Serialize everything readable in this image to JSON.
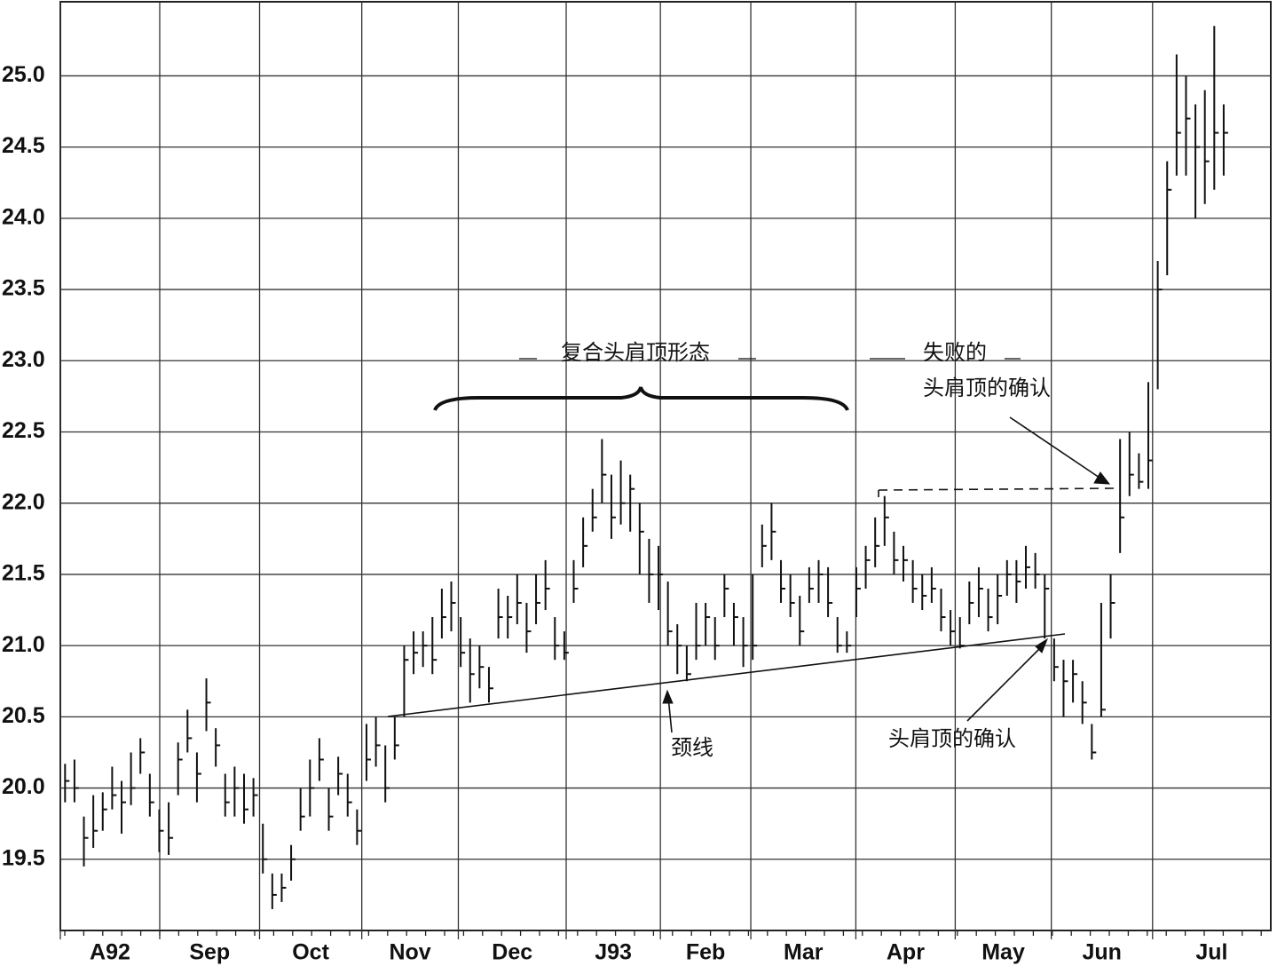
{
  "chart_data": {
    "type": "ohlc",
    "x": [
      1,
      3,
      5,
      7,
      9,
      11,
      13,
      15,
      17,
      19,
      21,
      23,
      25,
      27,
      29,
      31,
      33,
      35,
      37,
      39,
      41,
      43,
      45,
      47,
      49,
      51,
      53,
      55,
      57,
      59,
      61,
      63,
      65,
      67,
      69,
      71,
      73,
      75,
      77,
      79,
      81,
      83,
      85,
      87,
      89,
      91,
      93,
      95,
      97,
      99,
      101,
      103,
      105,
      107,
      109,
      111,
      113,
      115,
      117,
      119,
      121,
      123,
      125,
      127,
      129,
      131,
      133,
      135,
      137,
      139,
      141,
      143,
      145,
      147,
      149,
      151,
      153,
      155,
      157,
      159,
      161,
      163,
      165,
      167,
      169,
      171,
      173,
      175,
      177,
      179,
      181,
      183,
      185,
      187,
      189,
      191,
      193,
      195,
      197,
      199,
      201,
      203,
      205,
      207,
      209,
      211,
      213,
      215,
      217,
      219,
      221,
      223,
      225,
      227,
      229,
      231,
      233,
      235,
      237,
      239,
      241,
      243,
      245,
      247
    ],
    "high": [
      20.17,
      20.2,
      19.8,
      19.95,
      19.97,
      20.15,
      20.05,
      20.25,
      20.35,
      20.1,
      19.85,
      19.9,
      20.32,
      20.55,
      20.25,
      20.77,
      20.42,
      20.1,
      20.15,
      20.1,
      20.07,
      19.75,
      19.4,
      19.4,
      19.6,
      20.0,
      20.2,
      20.35,
      20.0,
      20.22,
      20.1,
      19.85,
      20.45,
      20.5,
      20.3,
      20.5,
      21.0,
      21.1,
      21.1,
      21.2,
      21.4,
      21.45,
      21.2,
      21.05,
      21.0,
      20.85,
      21.4,
      21.35,
      21.5,
      21.3,
      21.5,
      21.6,
      21.2,
      21.1,
      21.6,
      21.9,
      22.1,
      22.45,
      22.2,
      22.3,
      22.2,
      22.0,
      21.75,
      21.7,
      21.45,
      21.15,
      21.0,
      21.3,
      21.3,
      21.2,
      21.5,
      21.3,
      21.2,
      21.5,
      21.85,
      22.0,
      21.6,
      21.5,
      21.35,
      21.55,
      21.6,
      21.55,
      21.2,
      21.1,
      21.55,
      21.7,
      21.9,
      22.05,
      21.8,
      21.7,
      21.6,
      21.5,
      21.55,
      21.4,
      21.25,
      21.2,
      21.45,
      21.55,
      21.4,
      21.5,
      21.6,
      21.6,
      21.7,
      21.65,
      21.5,
      21.05,
      20.9,
      20.9,
      20.75,
      20.45,
      21.3,
      21.5,
      22.45,
      22.5,
      22.35,
      22.85,
      23.7,
      24.4,
      25.15,
      25.0,
      24.8,
      24.9,
      25.35,
      24.8
    ],
    "low": [
      19.9,
      19.9,
      19.45,
      19.58,
      19.7,
      19.85,
      19.68,
      19.88,
      20.1,
      19.8,
      19.55,
      19.53,
      19.95,
      20.25,
      19.9,
      20.4,
      20.15,
      19.8,
      19.8,
      19.75,
      19.8,
      19.4,
      19.15,
      19.2,
      19.35,
      19.7,
      19.8,
      20.05,
      19.7,
      19.95,
      19.8,
      19.6,
      20.05,
      20.15,
      19.9,
      20.2,
      20.5,
      20.8,
      20.85,
      20.8,
      21.05,
      21.1,
      20.85,
      20.6,
      20.7,
      20.6,
      21.05,
      21.05,
      21.15,
      20.95,
      21.15,
      21.25,
      20.9,
      20.9,
      21.3,
      21.55,
      21.8,
      22.0,
      21.75,
      21.85,
      21.8,
      21.5,
      21.3,
      21.25,
      21.0,
      20.8,
      20.75,
      20.9,
      21.0,
      20.9,
      21.2,
      21.0,
      20.85,
      20.9,
      21.55,
      21.6,
      21.3,
      21.2,
      21.0,
      21.3,
      21.3,
      21.2,
      20.95,
      20.95,
      21.2,
      21.4,
      21.55,
      21.7,
      21.5,
      21.45,
      21.3,
      21.25,
      21.3,
      21.1,
      21.0,
      20.98,
      21.15,
      21.2,
      21.1,
      21.15,
      21.35,
      21.3,
      21.4,
      21.4,
      21.05,
      20.75,
      20.5,
      20.6,
      20.45,
      20.2,
      20.5,
      21.05,
      21.65,
      22.05,
      22.1,
      22.1,
      22.8,
      23.6,
      24.3,
      24.3,
      24.0,
      24.1,
      24.2,
      24.3
    ],
    "close": [
      20.05,
      20.0,
      19.65,
      19.7,
      19.85,
      19.95,
      19.9,
      20.0,
      20.25,
      19.9,
      19.7,
      19.65,
      20.2,
      20.35,
      20.1,
      20.6,
      20.3,
      19.9,
      20.0,
      19.85,
      19.95,
      19.5,
      19.25,
      19.3,
      19.5,
      19.8,
      20.0,
      20.2,
      19.8,
      20.1,
      19.9,
      19.7,
      20.2,
      20.3,
      20.0,
      20.3,
      20.9,
      20.95,
      21.0,
      20.9,
      21.2,
      21.3,
      20.95,
      20.8,
      20.85,
      20.7,
      21.2,
      21.2,
      21.3,
      21.1,
      21.3,
      21.4,
      21.0,
      20.95,
      21.4,
      21.7,
      21.9,
      22.2,
      21.9,
      22.0,
      22.1,
      21.8,
      21.5,
      21.5,
      21.1,
      21.0,
      20.8,
      21.0,
      21.2,
      21.0,
      21.4,
      21.2,
      21.0,
      21.0,
      21.7,
      21.8,
      21.4,
      21.3,
      21.1,
      21.4,
      21.5,
      21.3,
      21.0,
      21.0,
      21.4,
      21.6,
      21.7,
      21.9,
      21.6,
      21.6,
      21.4,
      21.35,
      21.4,
      21.2,
      21.1,
      21.0,
      21.3,
      21.4,
      21.2,
      21.35,
      21.5,
      21.45,
      21.55,
      21.5,
      21.4,
      20.85,
      20.75,
      20.8,
      20.6,
      20.25,
      20.55,
      21.3,
      21.9,
      22.2,
      22.15,
      22.3,
      23.5,
      24.2,
      24.6,
      24.7,
      24.5,
      24.4,
      24.6,
      24.6
    ],
    "color": "#111111",
    "xlim": [
      0,
      257
    ],
    "xticks": [
      {
        "value": 0,
        "label": "A92"
      },
      {
        "value": 21.1,
        "label": "Sep"
      },
      {
        "value": 42.3,
        "label": "Oct"
      },
      {
        "value": 64,
        "label": "Nov"
      },
      {
        "value": 84.5,
        "label": "Dec"
      },
      {
        "value": 107.4,
        "label": "J93"
      },
      {
        "value": 127.4,
        "label": "Feb"
      },
      {
        "value": 146.6,
        "label": "Mar"
      },
      {
        "value": 168.9,
        "label": "Apr"
      },
      {
        "value": 190,
        "label": "May"
      },
      {
        "value": 210.4,
        "label": "Jun"
      },
      {
        "value": 231.9,
        "label": "Jul"
      }
    ],
    "ylim": [
      19.0,
      25.52
    ],
    "yticks": [
      19.5,
      {
        "value": 20,
        "label": "20.0"
      },
      20.5,
      {
        "value": 21,
        "label": "21.0"
      },
      21.5,
      {
        "value": 22,
        "label": "22.0"
      },
      22.5,
      {
        "value": 23,
        "label": "23.0"
      },
      23.5,
      {
        "value": 24,
        "label": "24.0"
      },
      24.5,
      {
        "value": 25,
        "label": "25.0"
      }
    ],
    "grid": true,
    "annotations": [
      "复合头肩顶形态",
      "失败的",
      "头肩顶的确认",
      "颈线",
      "头肩顶的确认"
    ]
  }
}
